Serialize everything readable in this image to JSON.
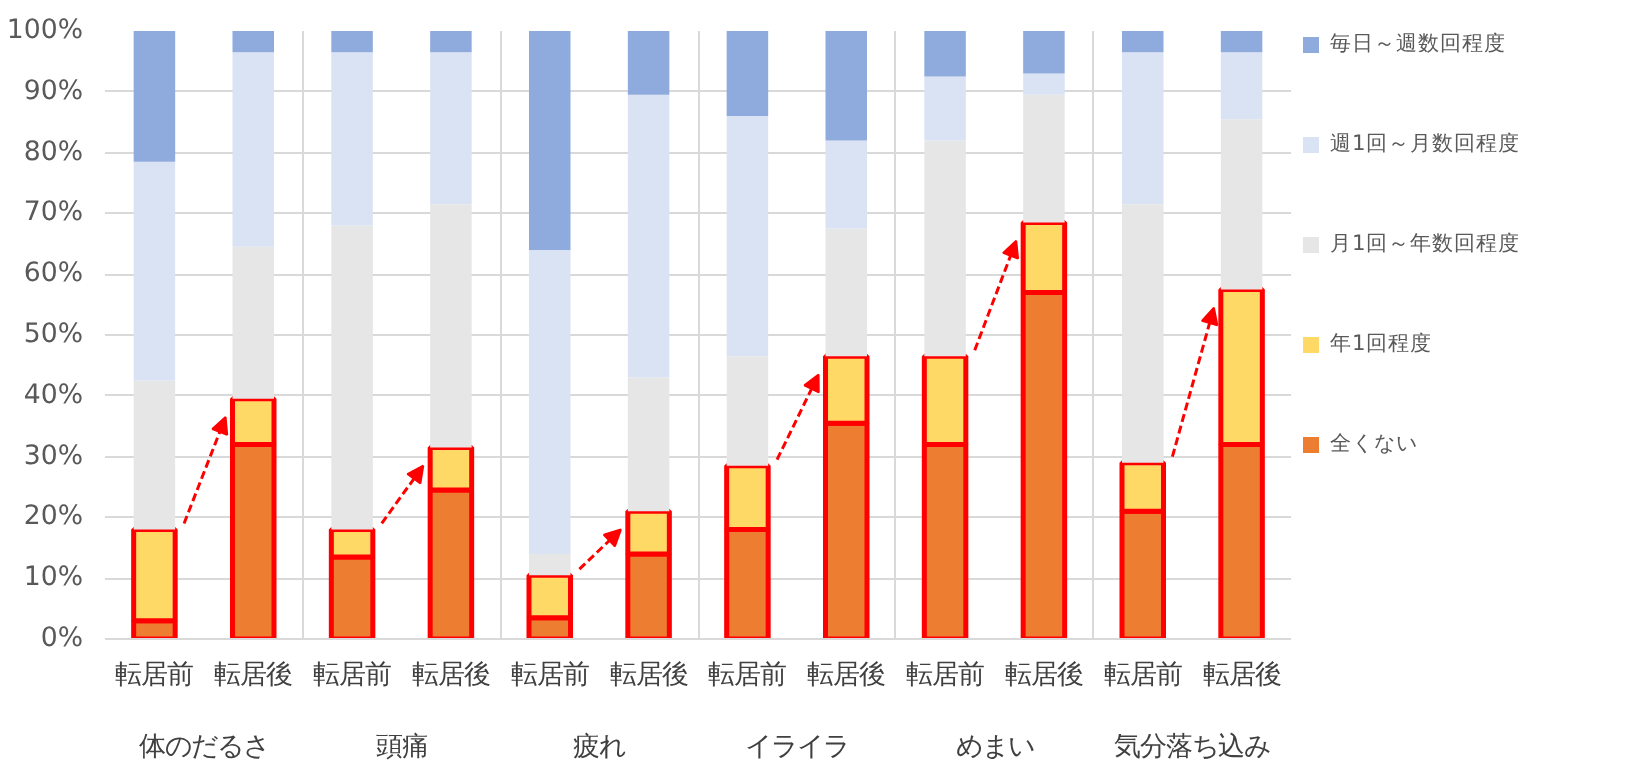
{
  "chart_data": {
    "type": "bar",
    "stacked": true,
    "categories": [
      "転居前",
      "転居後",
      "転居前",
      "転居後",
      "転居前",
      "転居後",
      "転居前",
      "転居後",
      "転居前",
      "転居後",
      "転居前",
      "転居後"
    ],
    "annotations": [
      "体のだるさ",
      "頭痛",
      "疲れ",
      "イライラ",
      "めまい",
      "気分落ち込み"
    ],
    "series": [
      {
        "name": "全くない",
        "color": "#ed7d31",
        "values": [
          3,
          32,
          13.5,
          24.5,
          3.5,
          14,
          18,
          35.5,
          32,
          57,
          21,
          32
        ]
      },
      {
        "name": "年1回程度",
        "color": "#ffd966",
        "values": [
          15,
          7.5,
          4.5,
          7,
          7,
          7,
          10.5,
          11,
          14.5,
          11.5,
          8,
          25.5
        ]
      },
      {
        "name": "月1回～年数回程度",
        "color": "#e7e6e6",
        "values": [
          24.5,
          25,
          50,
          40,
          3.5,
          22,
          18,
          21,
          35.5,
          21,
          42.5,
          28
        ]
      },
      {
        "name": "週1回～月数回程度",
        "color": "#dae3f3",
        "values": [
          36,
          32,
          28.5,
          25,
          50,
          46.5,
          39.5,
          14.5,
          10.5,
          3.5,
          25,
          11
        ]
      },
      {
        "name": "毎日～週数回程度",
        "color": "#8faadc",
        "values": [
          21.5,
          3.5,
          3.5,
          3.5,
          36,
          10.5,
          14,
          18,
          7.5,
          7,
          3.5,
          3.5
        ]
      }
    ],
    "ylim": [
      0,
      100
    ],
    "yticks": [
      {
        "value": 0,
        "label": "0%"
      },
      {
        "value": 10,
        "label": "10%"
      },
      {
        "value": 20,
        "label": "20%"
      },
      {
        "value": 30,
        "label": "30%"
      },
      {
        "value": 40,
        "label": "40%"
      },
      {
        "value": 50,
        "label": "50%"
      },
      {
        "value": 60,
        "label": "60%"
      },
      {
        "value": 70,
        "label": "70%"
      },
      {
        "value": 80,
        "label": "80%"
      },
      {
        "value": 90,
        "label": "90%"
      },
      {
        "value": 100,
        "label": "100%"
      }
    ],
    "grid": true,
    "legend": "right"
  }
}
